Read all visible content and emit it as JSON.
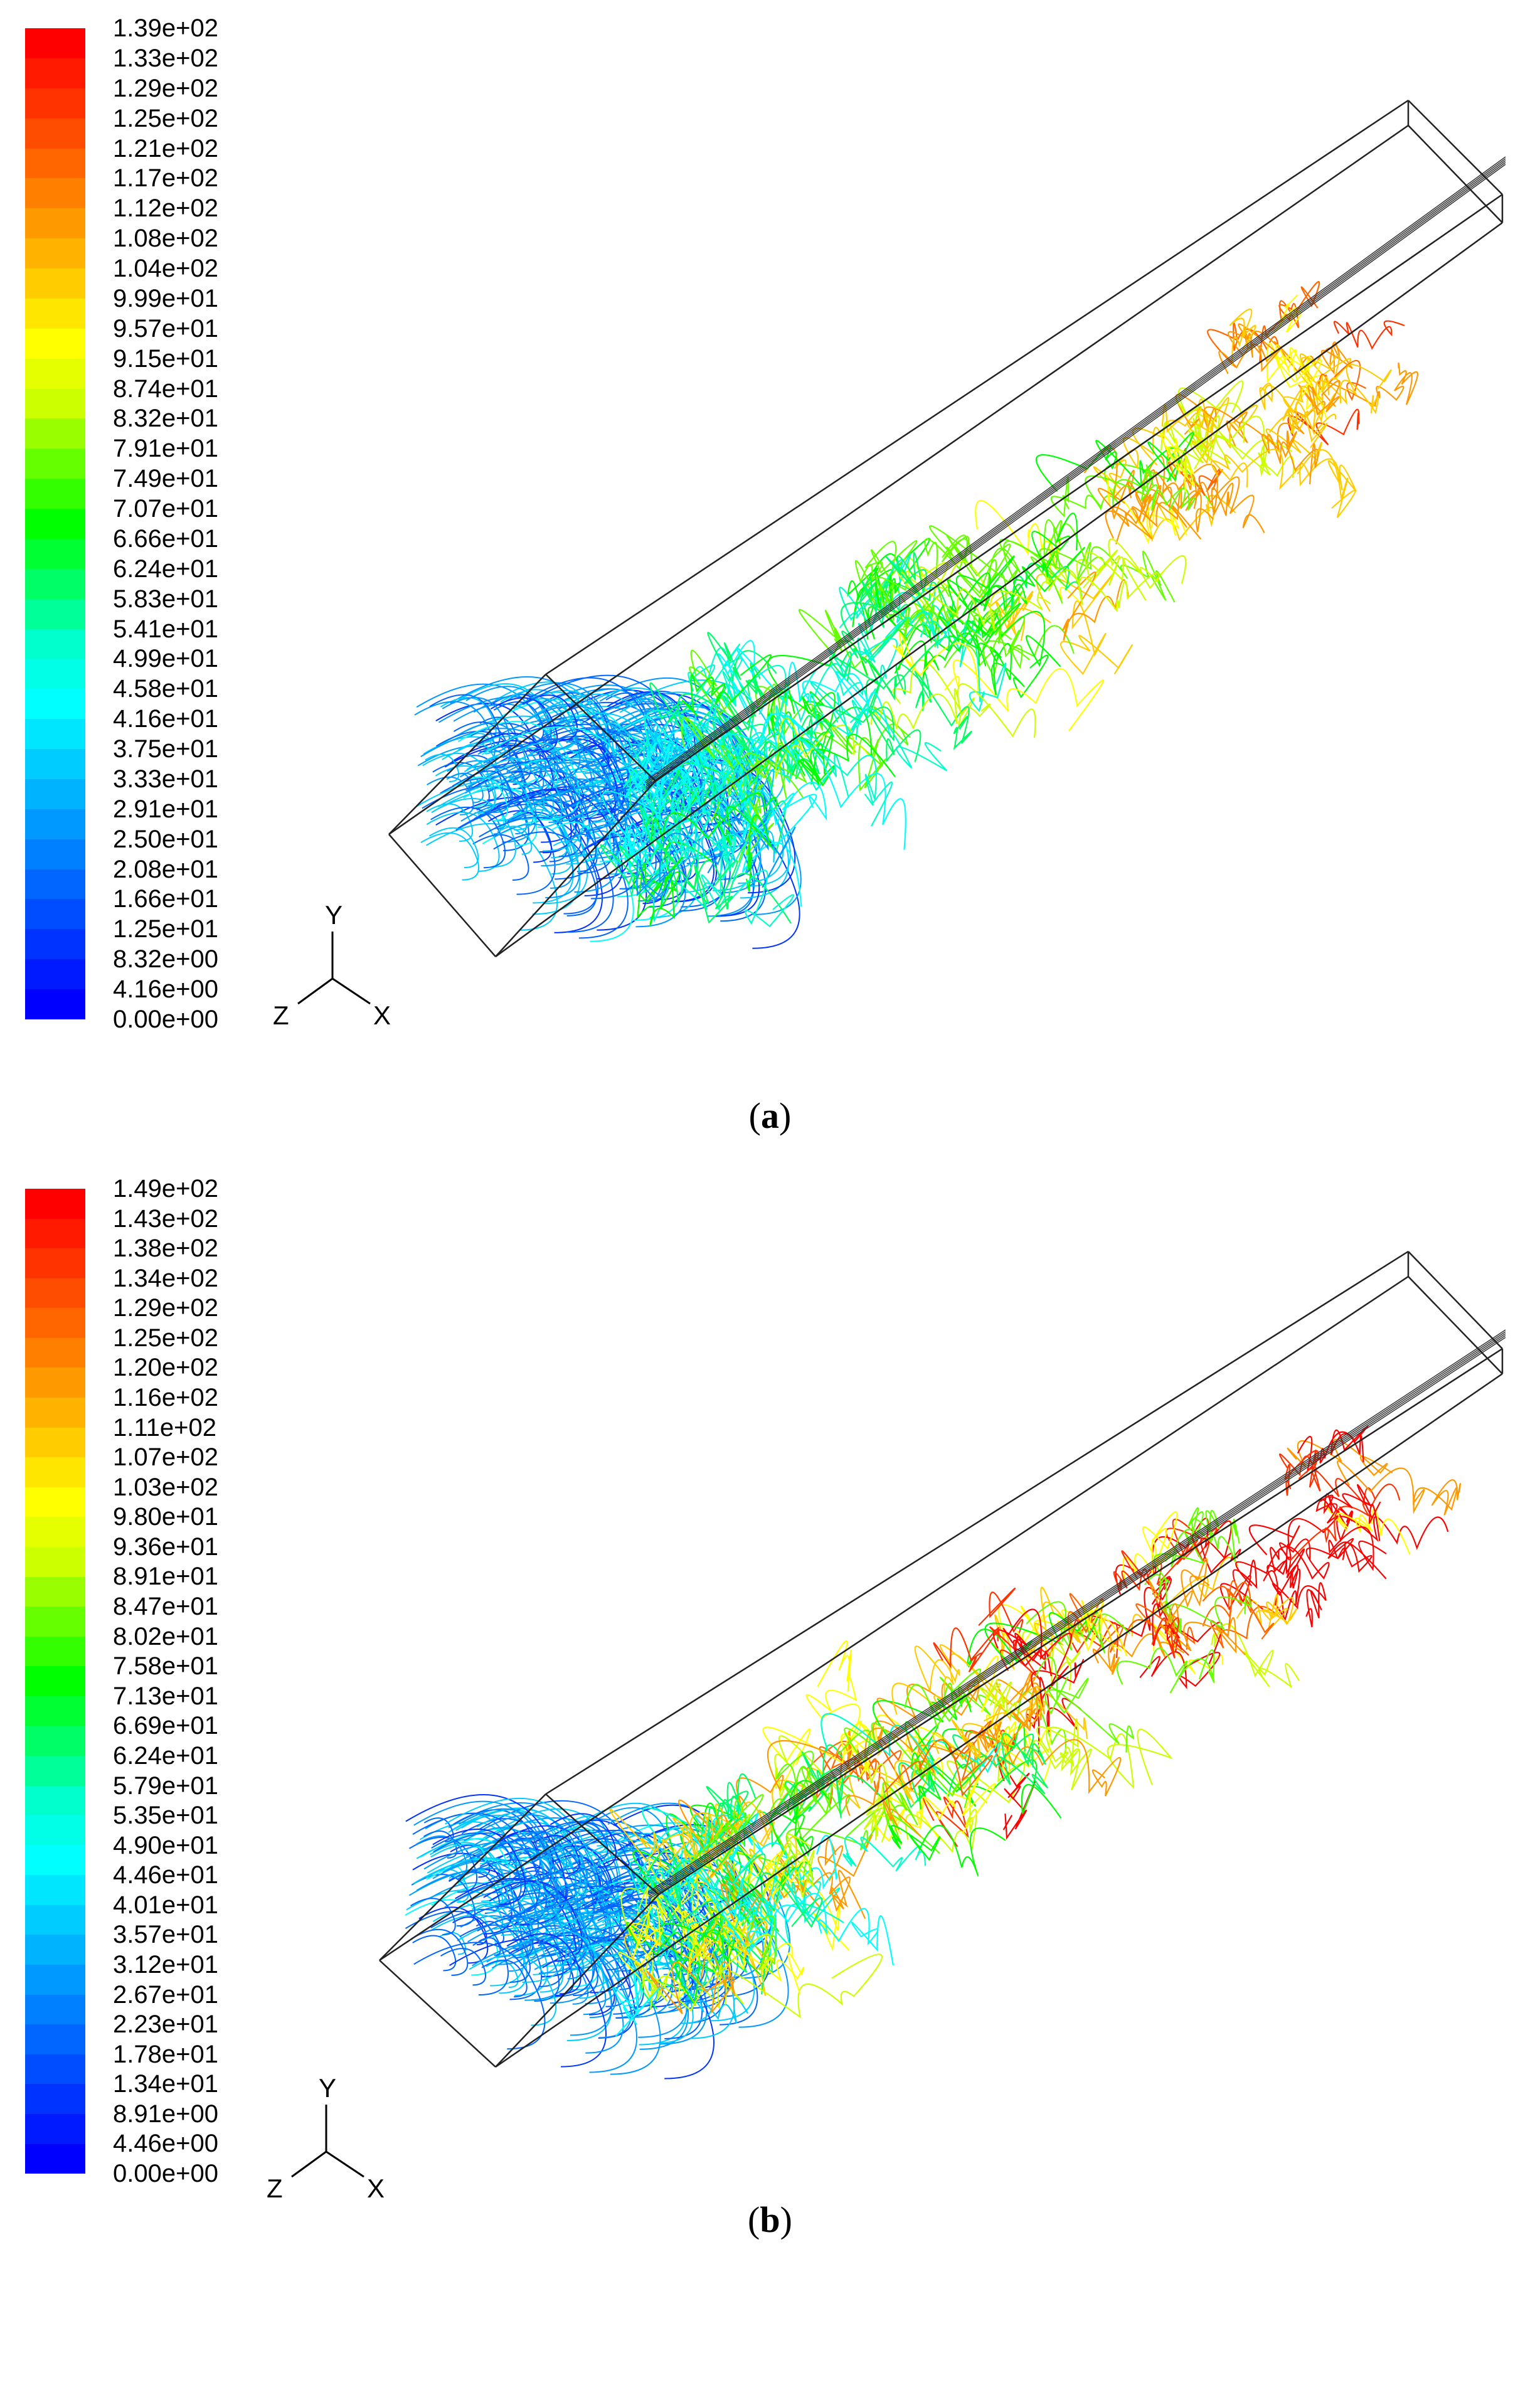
{
  "figures": [
    {
      "id": "a",
      "caption_letter": "a",
      "colorbar_labels": [
        "1.39e+02",
        "1.33e+02",
        "1.29e+02",
        "1.25e+02",
        "1.21e+02",
        "1.17e+02",
        "1.12e+02",
        "1.08e+02",
        "1.04e+02",
        "9.99e+01",
        "9.57e+01",
        "9.15e+01",
        "8.74e+01",
        "8.32e+01",
        "7.91e+01",
        "7.49e+01",
        "7.07e+01",
        "6.66e+01",
        "6.24e+01",
        "5.83e+01",
        "5.41e+01",
        "4.99e+01",
        "4.58e+01",
        "4.16e+01",
        "3.75e+01",
        "3.33e+01",
        "2.91e+01",
        "2.50e+01",
        "2.08e+01",
        "1.66e+01",
        "1.25e+01",
        "8.32e+00",
        "4.16e+00",
        "0.00e+00"
      ],
      "axis_labels": {
        "y": "Y",
        "z": "Z",
        "x": "X"
      }
    },
    {
      "id": "b",
      "caption_letter": "b",
      "colorbar_labels": [
        "1.49e+02",
        "1.43e+02",
        "1.38e+02",
        "1.34e+02",
        "1.29e+02",
        "1.25e+02",
        "1.20e+02",
        "1.16e+02",
        "1.11e+02",
        "1.07e+02",
        "1.03e+02",
        "9.80e+01",
        "9.36e+01",
        "8.91e+01",
        "8.47e+01",
        "8.02e+01",
        "7.58e+01",
        "7.13e+01",
        "6.69e+01",
        "6.24e+01",
        "5.79e+01",
        "5.35e+01",
        "4.90e+01",
        "4.46e+01",
        "4.01e+01",
        "3.57e+01",
        "3.12e+01",
        "2.67e+01",
        "2.23e+01",
        "1.78e+01",
        "1.34e+01",
        "8.91e+00",
        "4.46e+00",
        "0.00e+00"
      ],
      "axis_labels": {
        "y": "Y",
        "z": "Z",
        "x": "X"
      }
    }
  ],
  "colormap": [
    "#ff0000",
    "#ff3300",
    "#ff6600",
    "#ff9900",
    "#ffcc00",
    "#ffff00",
    "#ccff00",
    "#66ff00",
    "#00ff00",
    "#00ff66",
    "#00ffcc",
    "#00ffff",
    "#00ccff",
    "#0099ff",
    "#0066ff",
    "#0033ff",
    "#0000ff"
  ]
}
